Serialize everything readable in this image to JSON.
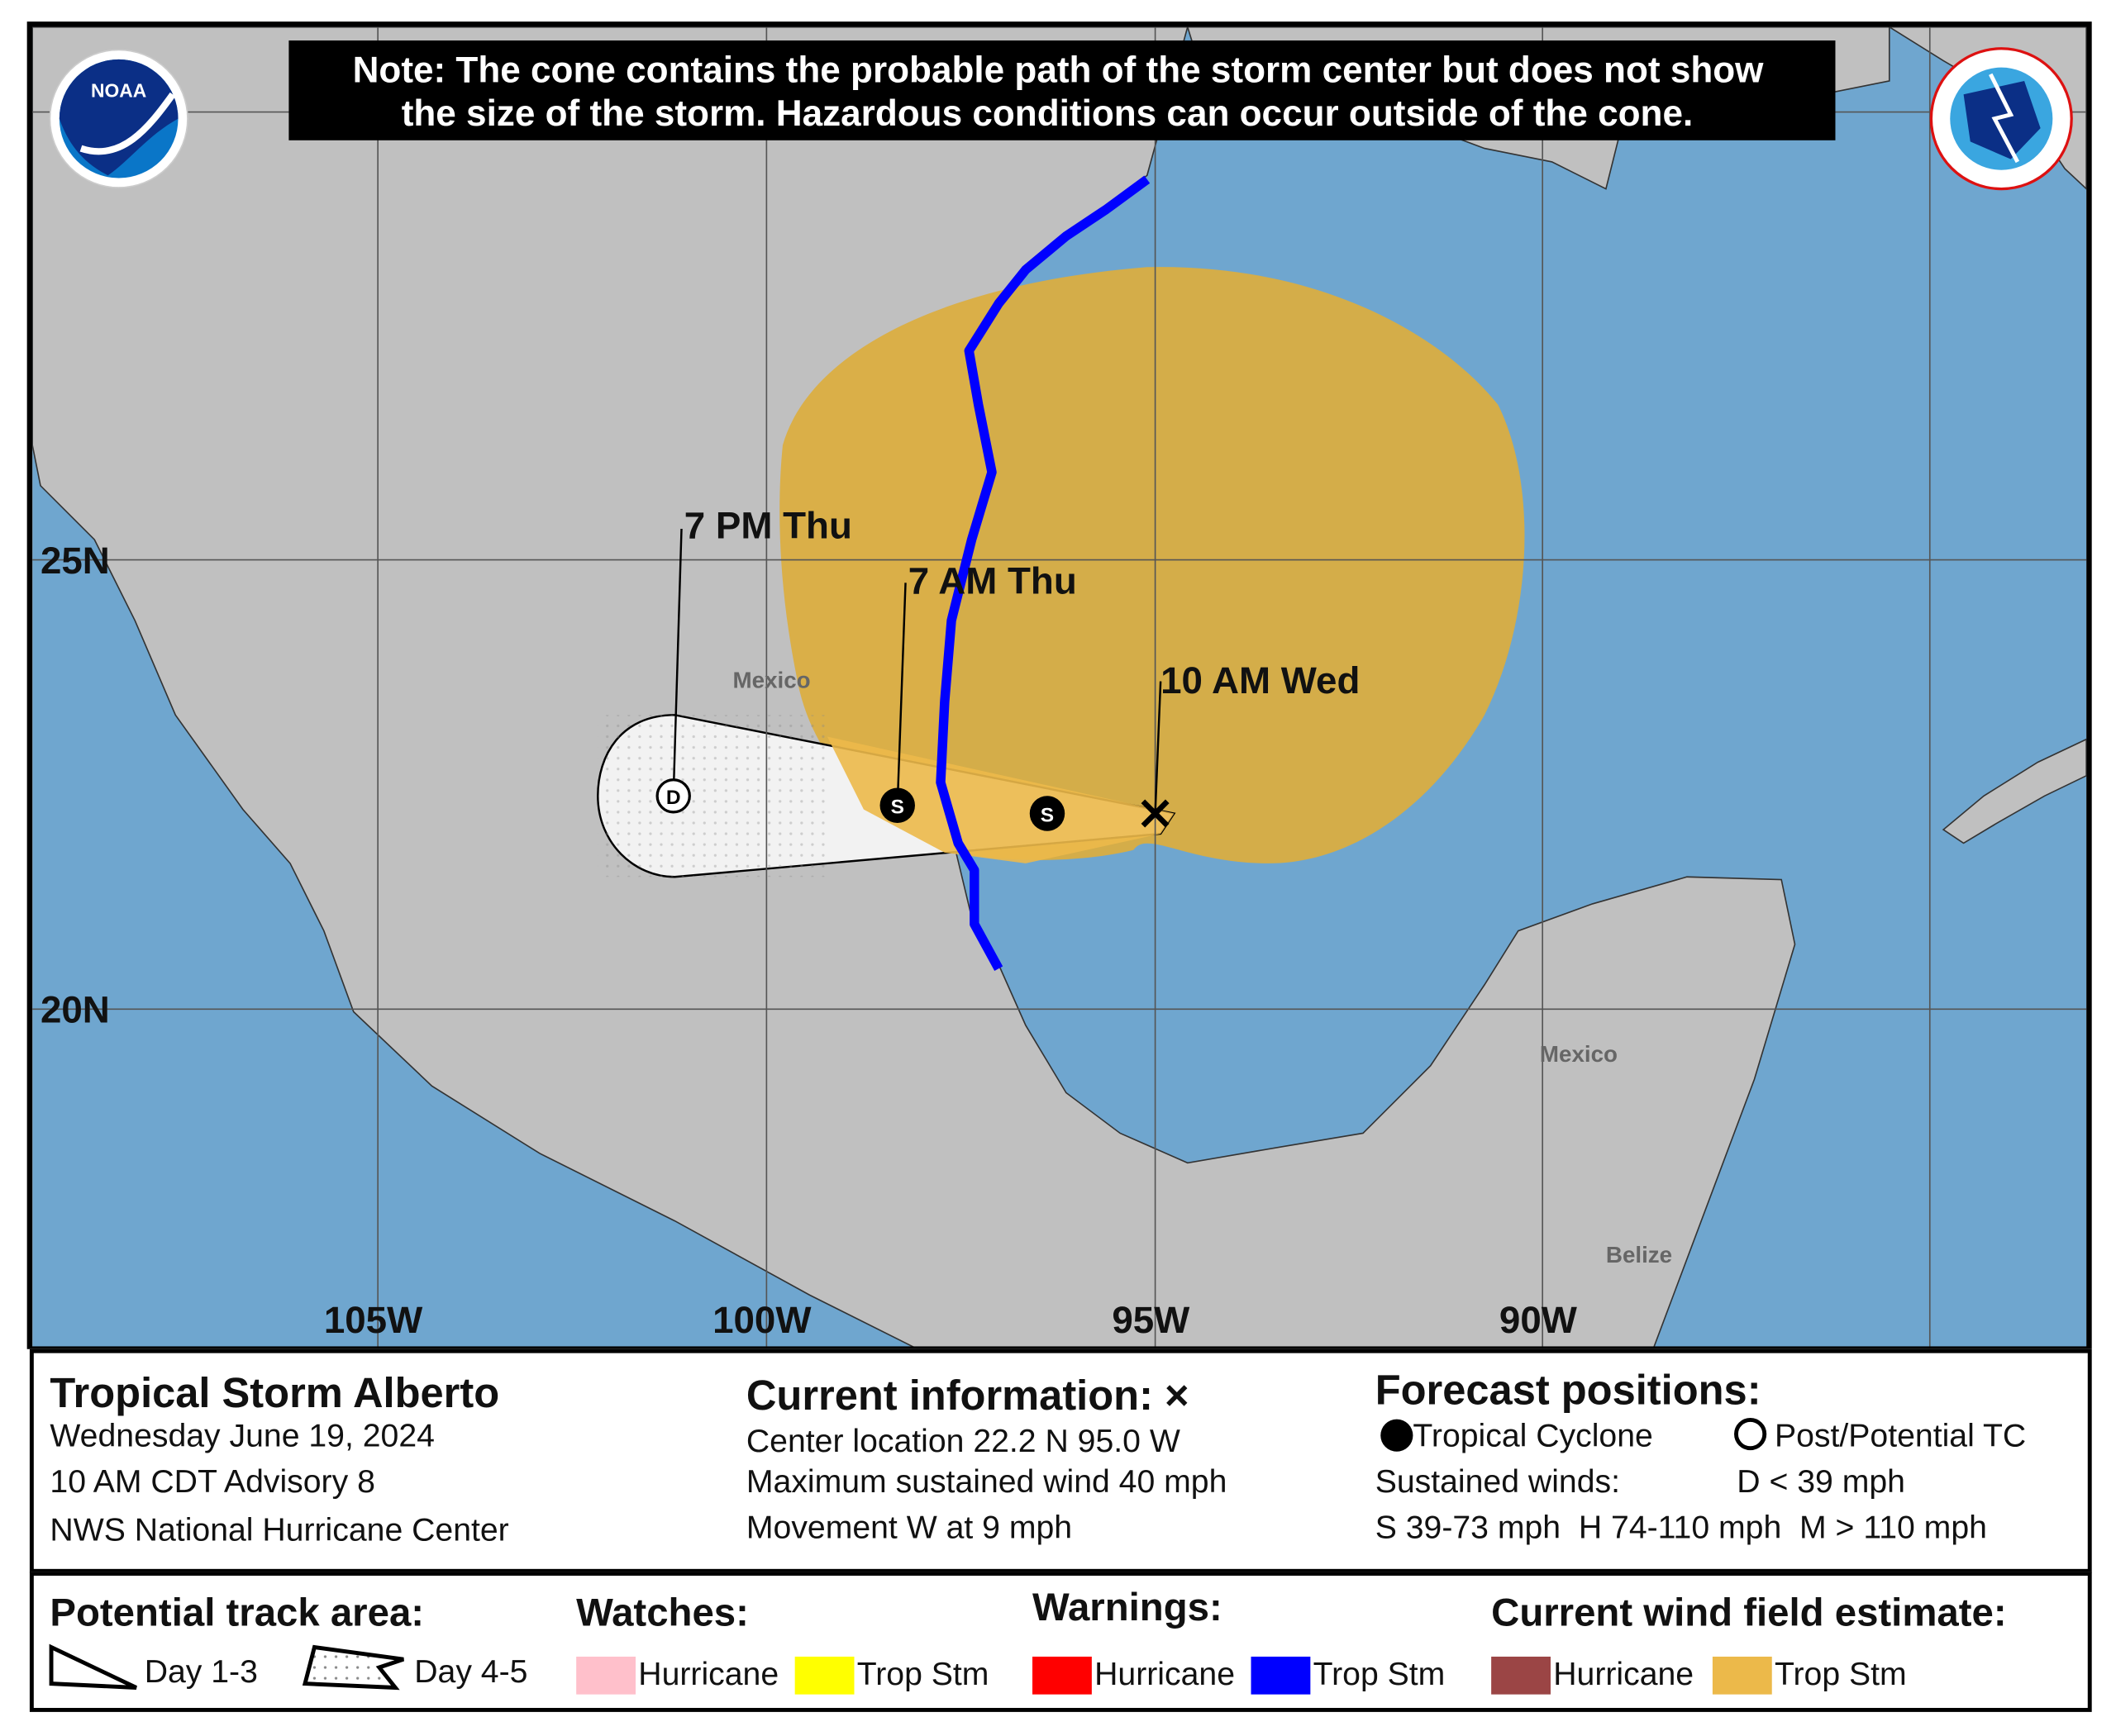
{
  "note": {
    "line1": "Note: The cone contains the probable path of the storm center but does not show",
    "line2": "the size of the storm. Hazardous conditions can occur outside of the cone."
  },
  "logos": {
    "left": "NOAA",
    "right": "NATIONAL WEATHER SERVICE"
  },
  "map": {
    "lat_labels": [
      "25N",
      "20N"
    ],
    "lon_labels": [
      "105W",
      "100W",
      "95W",
      "90W"
    ],
    "place_labels": [
      "Mexico",
      "Mexico",
      "Belize"
    ],
    "forecast_points": [
      {
        "label": "10 AM Wed",
        "symbol": "x",
        "lat": 22.2,
        "lon": -95.0
      },
      {
        "label": "",
        "symbol": "S",
        "lat": 22.2,
        "lon": -96.4
      },
      {
        "label": "7 AM Thu",
        "symbol": "S",
        "lat": 22.3,
        "lon": -98.0
      },
      {
        "label": "7 PM Thu",
        "symbol": "D",
        "lat": 22.4,
        "lon": -101.0
      }
    ],
    "colors": {
      "ocean": "#6fa6cf",
      "land": "#c0c0c0",
      "cone": "#f2f2f2",
      "wind_field_trop_stm": "#dcae3e",
      "warning_trop_stm": "#0000ff"
    }
  },
  "info": {
    "title": "Tropical Storm Alberto",
    "date": "Wednesday June 19, 2024",
    "advisory": "10 AM CDT Advisory 8",
    "center": "NWS National Hurricane Center",
    "current_title": "Current information: ",
    "current_mark": "×",
    "location": "Center location 22.2 N 95.0 W",
    "wind": "Maximum sustained wind 40 mph",
    "movement": "Movement W at 9 mph",
    "forecast_title": "Forecast positions:",
    "tc": "Tropical Cyclone",
    "ptc": "Post/Potential TC",
    "sustained": "Sustained winds:",
    "d": "D < 39 mph",
    "shm": "S 39-73 mph  H 74-110 mph  M > 110 mph"
  },
  "legend": {
    "track_title": "Potential track area:",
    "day13": "Day 1-3",
    "day45": "Day 4-5",
    "watches_title": "Watches:",
    "warnings_title": "Warnings:",
    "wind_title": "Current wind field estimate:",
    "items": [
      {
        "label": "Hurricane",
        "color": "#ffc0cb"
      },
      {
        "label": "Trop Stm",
        "color": "#ffff00"
      },
      {
        "label": "Hurricane",
        "color": "#ff0000"
      },
      {
        "label": "Trop Stm",
        "color": "#0000ff"
      },
      {
        "label": "Hurricane",
        "color": "#9b4545"
      },
      {
        "label": "Trop Stm",
        "color": "#ecb94a"
      }
    ]
  }
}
